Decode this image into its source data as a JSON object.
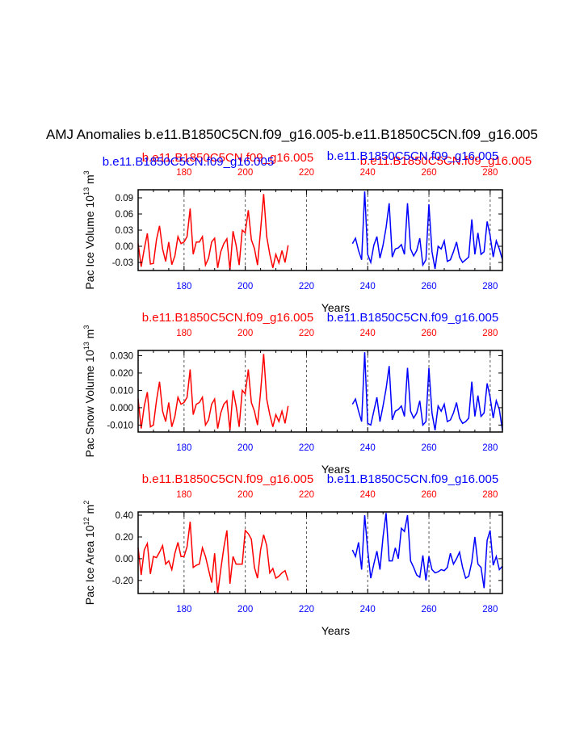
{
  "title": "AMJ Anomalies b.e11.B1850C5CN.f09_g16.005-b.e11.B1850C5CN.f09_g16.005",
  "colors": {
    "case1": "#ff0000",
    "case2": "#0000ff",
    "axis": "#000000",
    "grid": "#555555"
  },
  "chart_data": [
    {
      "type": "line",
      "ylabel_main": "Pac Ice Volume 10",
      "ylabel_exp": "13",
      "ylabel_unit": "m",
      "ylabel_unit_exp": "3",
      "xlabel": "Years",
      "xlim": [
        165,
        284
      ],
      "ylim": [
        -0.045,
        0.105
      ],
      "yticks": [
        0.09,
        0.06,
        0.03,
        0.0,
        -0.03
      ],
      "ytick_labels": [
        "0.09",
        "0.06",
        "0.03",
        "0.00",
        "-0.03"
      ],
      "xticks": [
        180,
        200,
        220,
        240,
        260,
        280
      ],
      "xtick_labels": [
        "180",
        "200",
        "220",
        "240",
        "260",
        "280"
      ],
      "top_ticks_red": [
        "180",
        "200",
        "220",
        "240",
        "260",
        "280"
      ],
      "bottom_labels_blue": [
        "180",
        "200",
        "220",
        "240",
        "260",
        "280"
      ],
      "grid_x": [
        180,
        200,
        220,
        240,
        260,
        280
      ],
      "series": [
        {
          "name": "b.e11.B1850C5CN.f09_g16.005",
          "color": "red",
          "x": [
            165,
            166,
            167,
            168,
            169,
            170,
            171,
            172,
            173,
            174,
            175,
            176,
            177,
            178,
            179,
            180,
            181,
            182,
            183,
            184,
            185,
            186,
            187,
            188,
            189,
            190,
            191,
            192,
            193,
            194,
            195,
            196,
            197,
            198,
            199,
            200,
            201,
            202,
            203,
            204,
            205,
            206,
            207,
            208,
            209,
            210,
            211,
            212,
            213,
            214
          ],
          "values": [
            0.005,
            -0.038,
            -0.005,
            0.024,
            -0.033,
            -0.032,
            0.012,
            0.038,
            -0.005,
            -0.028,
            0.008,
            -0.034,
            -0.018,
            0.018,
            0.005,
            0.008,
            0.018,
            0.07,
            -0.015,
            0.008,
            0.008,
            0.018,
            -0.035,
            -0.022,
            0.008,
            0.015,
            -0.04,
            -0.01,
            0.005,
            0.014,
            -0.044,
            0.028,
            0.002,
            -0.035,
            0.03,
            0.025,
            0.067,
            0.012,
            -0.004,
            -0.035,
            0.03,
            0.097,
            0.018,
            -0.015,
            -0.04,
            -0.015,
            -0.031,
            -0.008,
            -0.03,
            0.002
          ]
        },
        {
          "name": "b.e11.B1850C5CN.f09_g16.005",
          "color": "blue",
          "x": [
            235,
            236,
            237,
            238,
            239,
            240,
            241,
            242,
            243,
            244,
            245,
            246,
            247,
            248,
            249,
            250,
            251,
            252,
            253,
            254,
            255,
            256,
            257,
            258,
            259,
            260,
            261,
            262,
            263,
            264,
            265,
            266,
            267,
            268,
            269,
            270,
            271,
            272,
            273,
            274,
            275,
            276,
            277,
            278,
            279,
            280,
            281,
            282,
            283,
            284
          ],
          "values": [
            0.005,
            0.015,
            -0.008,
            -0.025,
            0.102,
            -0.015,
            -0.03,
            0.002,
            0.018,
            -0.022,
            0.002,
            0.035,
            0.08,
            -0.02,
            -0.005,
            -0.003,
            0.003,
            -0.015,
            0.08,
            -0.005,
            -0.018,
            -0.008,
            0.015,
            -0.035,
            -0.025,
            0.078,
            -0.01,
            -0.042,
            0.0,
            -0.005,
            0.01,
            -0.028,
            -0.025,
            -0.01,
            0.008,
            -0.02,
            -0.03,
            -0.025,
            -0.02,
            0.05,
            -0.015,
            0.025,
            -0.015,
            -0.01,
            0.046,
            0.02,
            -0.02,
            0.01,
            -0.005,
            -0.025
          ]
        }
      ]
    },
    {
      "type": "line",
      "ylabel_main": "Pac Snow Volume 10",
      "ylabel_exp": "13",
      "ylabel_unit": "m",
      "ylabel_unit_exp": "3",
      "xlabel": "Years",
      "xlim": [
        165,
        284
      ],
      "ylim": [
        -0.014,
        0.033
      ],
      "yticks": [
        0.03,
        0.02,
        0.01,
        0.0,
        -0.01
      ],
      "ytick_labels": [
        "0.030",
        "0.020",
        "0.010",
        "0.000",
        "-0.010"
      ],
      "xticks": [
        180,
        200,
        220,
        240,
        260,
        280
      ],
      "xtick_labels": [
        "180",
        "200",
        "220",
        "240",
        "260",
        "280"
      ],
      "top_ticks_red": [
        "180",
        "200",
        "220",
        "240",
        "260",
        "280"
      ],
      "bottom_labels_blue": [
        "180",
        "200",
        "220",
        "240",
        "260",
        "280"
      ],
      "grid_x": [
        180,
        200,
        220,
        240,
        260,
        280
      ],
      "series": [
        {
          "name": "b.e11.B1850C5CN.f09_g16.005",
          "color": "red",
          "x": [
            165,
            166,
            167,
            168,
            169,
            170,
            171,
            172,
            173,
            174,
            175,
            176,
            177,
            178,
            179,
            180,
            181,
            182,
            183,
            184,
            185,
            186,
            187,
            188,
            189,
            190,
            191,
            192,
            193,
            194,
            195,
            196,
            197,
            198,
            199,
            200,
            201,
            202,
            203,
            204,
            205,
            206,
            207,
            208,
            209,
            210,
            211,
            212,
            213,
            214
          ],
          "values": [
            0.005,
            -0.012,
            0.001,
            0.009,
            -0.011,
            -0.01,
            0.004,
            0.015,
            -0.002,
            -0.008,
            0.003,
            -0.011,
            -0.005,
            0.006,
            0.002,
            0.003,
            0.006,
            0.022,
            -0.004,
            0.002,
            0.003,
            0.006,
            -0.01,
            -0.007,
            0.002,
            0.005,
            -0.012,
            -0.003,
            0.002,
            0.004,
            -0.013,
            0.01,
            0.001,
            -0.011,
            0.01,
            0.008,
            0.022,
            0.003,
            -0.002,
            -0.01,
            0.009,
            0.031,
            0.005,
            -0.004,
            -0.011,
            -0.004,
            -0.008,
            -0.002,
            -0.009,
            0.001
          ]
        },
        {
          "name": "b.e11.B1850C5CN.f09_g16.005",
          "color": "blue",
          "x": [
            235,
            236,
            237,
            238,
            239,
            240,
            241,
            242,
            243,
            244,
            245,
            246,
            247,
            248,
            249,
            250,
            251,
            252,
            253,
            254,
            255,
            256,
            257,
            258,
            259,
            260,
            261,
            262,
            263,
            264,
            265,
            266,
            267,
            268,
            269,
            270,
            271,
            272,
            273,
            274,
            275,
            276,
            277,
            278,
            279,
            280,
            281,
            282,
            283,
            284
          ],
          "values": [
            0.002,
            0.005,
            -0.002,
            -0.008,
            0.032,
            -0.009,
            -0.01,
            -0.002,
            0.006,
            -0.008,
            0.001,
            0.011,
            0.024,
            -0.007,
            -0.002,
            -0.001,
            0.001,
            -0.005,
            0.023,
            -0.002,
            -0.006,
            -0.003,
            0.004,
            -0.01,
            -0.008,
            0.023,
            -0.003,
            -0.013,
            0.001,
            -0.002,
            0.002,
            -0.008,
            -0.007,
            -0.003,
            0.003,
            -0.006,
            -0.009,
            -0.008,
            -0.006,
            0.015,
            -0.005,
            0.007,
            -0.005,
            -0.003,
            0.014,
            0.006,
            -0.006,
            0.004,
            -0.001,
            -0.013
          ]
        }
      ]
    },
    {
      "type": "line",
      "ylabel_main": "Pac Ice Area 10",
      "ylabel_exp": "12",
      "ylabel_unit": "m",
      "ylabel_unit_exp": "2",
      "xlabel": "Years",
      "xlim": [
        165,
        284
      ],
      "ylim": [
        -0.32,
        0.43
      ],
      "yticks": [
        0.4,
        0.2,
        0.0,
        -0.2
      ],
      "ytick_labels": [
        "0.40",
        "0.20",
        "0.00",
        "-0.20"
      ],
      "xticks": [
        180,
        200,
        220,
        240,
        260,
        280
      ],
      "xtick_labels": [
        "180",
        "200",
        "220",
        "240",
        "260",
        "280"
      ],
      "top_ticks_red": [
        "180",
        "200",
        "220",
        "240",
        "260",
        "280"
      ],
      "bottom_labels_blue": [
        "180",
        "200",
        "220",
        "240",
        "260",
        "280"
      ],
      "grid_x": [
        180,
        200,
        220,
        240,
        260,
        280
      ],
      "series": [
        {
          "name": "b.e11.B1850C5CN.f09_g16.005",
          "color": "red",
          "x": [
            165,
            166,
            167,
            168,
            169,
            170,
            171,
            172,
            173,
            174,
            175,
            176,
            177,
            178,
            179,
            180,
            181,
            182,
            183,
            184,
            185,
            186,
            187,
            188,
            189,
            190,
            191,
            192,
            193,
            194,
            195,
            196,
            197,
            198,
            199,
            200,
            201,
            202,
            203,
            204,
            205,
            206,
            207,
            208,
            209,
            210,
            211,
            212,
            213,
            214
          ],
          "values": [
            0.1,
            -0.15,
            0.08,
            0.14,
            -0.14,
            0.02,
            0.01,
            0.06,
            0.12,
            -0.05,
            -0.02,
            -0.1,
            0.05,
            0.15,
            0.02,
            0.02,
            0.11,
            0.34,
            -0.08,
            -0.06,
            -0.05,
            0.1,
            0.02,
            -0.1,
            -0.22,
            0.05,
            -0.32,
            -0.1,
            0.1,
            0.26,
            -0.23,
            0.02,
            -0.05,
            -0.05,
            -0.05,
            0.26,
            0.23,
            0.18,
            -0.08,
            -0.18,
            0.08,
            0.22,
            0.12,
            -0.13,
            -0.09,
            -0.18,
            -0.16,
            -0.13,
            -0.11,
            -0.2
          ]
        },
        {
          "name": "b.e11.B1850C5CN.f09_g16.005",
          "color": "blue",
          "x": [
            235,
            236,
            237,
            238,
            239,
            240,
            241,
            242,
            243,
            244,
            245,
            246,
            247,
            248,
            249,
            250,
            251,
            252,
            253,
            254,
            255,
            256,
            257,
            258,
            259,
            260,
            261,
            262,
            263,
            264,
            265,
            266,
            267,
            268,
            269,
            270,
            271,
            272,
            273,
            274,
            275,
            276,
            277,
            278,
            279,
            280,
            281,
            282,
            283,
            284
          ],
          "values": [
            0.08,
            0.02,
            0.15,
            -0.1,
            0.4,
            0.08,
            -0.18,
            -0.05,
            0.07,
            -0.1,
            0.2,
            0.42,
            -0.02,
            -0.02,
            0.1,
            0.0,
            0.28,
            0.25,
            0.4,
            -0.02,
            -0.08,
            -0.15,
            -0.17,
            0.03,
            -0.2,
            0.02,
            -0.1,
            -0.13,
            -0.12,
            -0.1,
            -0.11,
            -0.08,
            0.05,
            -0.05,
            0.0,
            0.06,
            -0.08,
            -0.18,
            -0.16,
            -0.03,
            0.2,
            -0.05,
            -0.08,
            -0.27,
            0.17,
            0.26,
            -0.06,
            0.02,
            -0.1,
            -0.07
          ]
        }
      ]
    }
  ],
  "legend_red": "b.e11.B1850C5CN.f09_g16.005",
  "legend_blue": "b.e11.B1850C5CN.f09_g16.005"
}
